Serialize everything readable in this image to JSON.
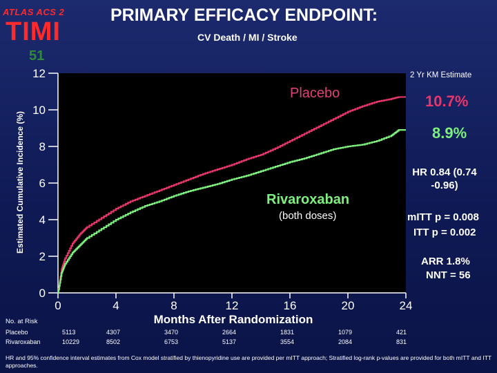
{
  "logo": {
    "top": "ATLAS ACS 2",
    "main": "TIMI",
    "number": "51"
  },
  "title": "PRIMARY EFFICACY ENDPOINT:",
  "subtitle": "CV  Death / MI / Stroke",
  "km_header": "2 Yr KM Estimate",
  "legend": {
    "placebo_label": "Placebo",
    "rivaroxaban_label": "Rivaroxaban",
    "rivaroxaban_sub": "(both doses)",
    "placebo_value": "10.7%",
    "rivaroxaban_value": "8.9%"
  },
  "stats": {
    "hr": "HR 0.84   (0.74 -0.96)",
    "mitt": "mITT p = 0.008",
    "itt": "ITT p = 0.002",
    "arr": "ARR 1.8%",
    "nnt": "NNT = 56"
  },
  "risk_table": {
    "header": "No. at Risk",
    "rows": [
      {
        "label": "Placebo",
        "values": [
          "5113",
          "4307",
          "3470",
          "2664",
          "1831",
          "1079",
          "421"
        ]
      },
      {
        "label": "Rivaroxaban",
        "values": [
          "10229",
          "8502",
          "6753",
          "5137",
          "3554",
          "2084",
          "831"
        ]
      }
    ]
  },
  "footnote": "HR and 95% confidence interval estimates from Cox model stratified by thienopyridine use are provided per mITT approach; Stratified log-rank p-values are provided for both mITT and ITT approaches.",
  "colors": {
    "placebo": "#e8356a",
    "rivaroxaban": "#7ef07e",
    "plot_bg": "#000000",
    "axis": "#ffffff"
  },
  "chart_data": {
    "type": "line",
    "title": "PRIMARY EFFICACY ENDPOINT: CV Death / MI / Stroke",
    "xlabel": "Months After Randomization",
    "ylabel": "Estimated Cumulative Incidence  (%)",
    "xlim": [
      0,
      24
    ],
    "ylim": [
      0,
      12
    ],
    "xticks": [
      0,
      4,
      8,
      12,
      16,
      20,
      24
    ],
    "yticks": [
      0,
      2,
      4,
      6,
      8,
      10,
      12
    ],
    "series": [
      {
        "name": "Placebo",
        "x": [
          0,
          0.25,
          0.5,
          1,
          1.5,
          2,
          3,
          4,
          5,
          6,
          7,
          8,
          9,
          10,
          11,
          12,
          13,
          14,
          15,
          16,
          17,
          18,
          19,
          20,
          21,
          22,
          23,
          23.5,
          24
        ],
        "y": [
          0,
          1.3,
          1.9,
          2.7,
          3.2,
          3.6,
          4.1,
          4.6,
          5.0,
          5.3,
          5.6,
          5.9,
          6.2,
          6.5,
          6.75,
          7.0,
          7.3,
          7.55,
          7.9,
          8.3,
          8.7,
          9.1,
          9.5,
          9.9,
          10.2,
          10.45,
          10.6,
          10.7,
          10.7
        ]
      },
      {
        "name": "Rivaroxaban",
        "x": [
          0,
          0.25,
          0.5,
          1,
          1.5,
          2,
          3,
          4,
          5,
          6,
          7,
          8,
          9,
          10,
          11,
          12,
          13,
          14,
          15,
          16,
          17,
          18,
          19,
          20,
          21,
          22,
          23,
          23.5,
          24
        ],
        "y": [
          0,
          1.1,
          1.6,
          2.2,
          2.6,
          3.0,
          3.5,
          4.0,
          4.4,
          4.75,
          5.0,
          5.3,
          5.55,
          5.75,
          5.95,
          6.2,
          6.4,
          6.65,
          6.9,
          7.15,
          7.35,
          7.6,
          7.85,
          8.0,
          8.1,
          8.3,
          8.6,
          8.9,
          8.9
        ]
      }
    ]
  }
}
